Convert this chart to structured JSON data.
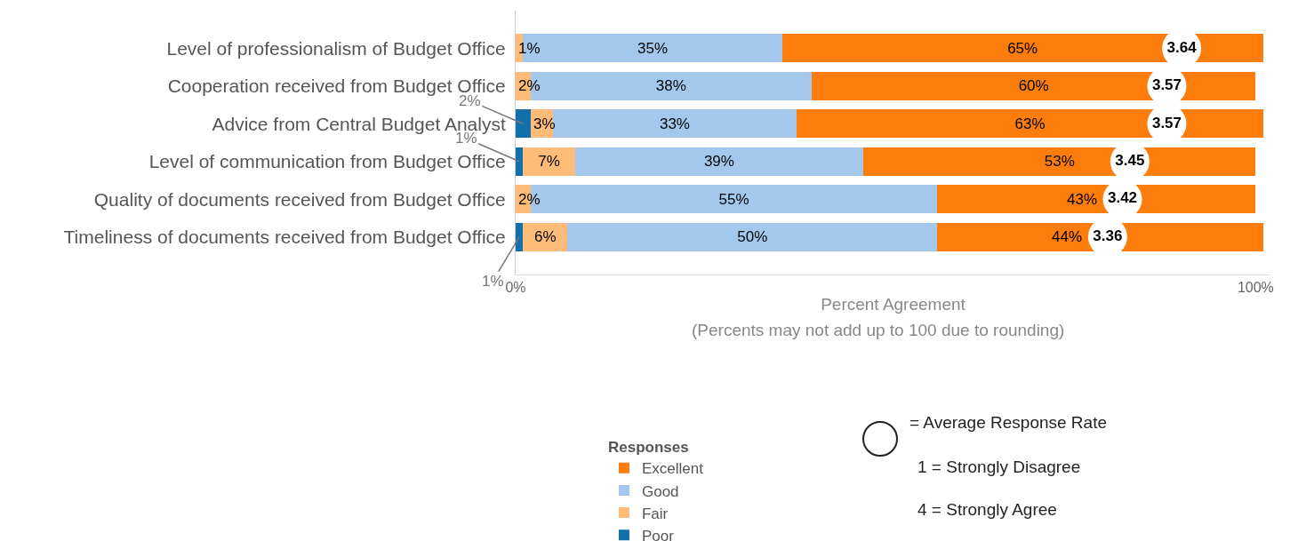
{
  "chart_data": {
    "type": "bar",
    "orientation": "horizontal",
    "stacked": true,
    "categories": [
      "Level of professionalism of Budget Office",
      "Cooperation received from Budget Office",
      "Advice from Central Budget Analyst",
      "Level of communication from Budget Office",
      "Quality of documents received from Budget Office",
      "Timeliness of documents received from Budget Office"
    ],
    "series": [
      {
        "name": "Poor",
        "color": "#1170aa",
        "values": [
          null,
          null,
          2,
          1,
          null,
          1
        ],
        "value_labels": [
          null,
          null,
          "2%",
          "1%",
          null,
          "1%"
        ]
      },
      {
        "name": "Fair",
        "color": "#ffbc79",
        "values": [
          1,
          2,
          3,
          7,
          2,
          6
        ],
        "value_labels": [
          "1%",
          "2%",
          "3%",
          "7%",
          "2%",
          "6%"
        ]
      },
      {
        "name": "Good",
        "color": "#a3c8ec",
        "values": [
          35,
          38,
          33,
          39,
          55,
          50
        ],
        "value_labels": [
          "35%",
          "38%",
          "33%",
          "39%",
          "55%",
          "50%"
        ]
      },
      {
        "name": "Excellent",
        "color": "#fc7d0b",
        "values": [
          65,
          60,
          63,
          53,
          43,
          44
        ],
        "value_labels": [
          "65%",
          "60%",
          "63%",
          "53%",
          "43%",
          "44%"
        ]
      }
    ],
    "xlim": [
      0,
      102
    ],
    "xticks": [
      {
        "value": 0,
        "label": "0%"
      },
      {
        "value": 100,
        "label": "100%"
      }
    ],
    "xlabel": "Percent Agreement",
    "legend_title": "Responses",
    "legend": "bottom",
    "grid": false,
    "annotations": [
      "(Percents may not add up to 100 due to rounding)",
      "= Average Response Rate",
      "1 = Strongly Disagree",
      "4 = Strongly Agree",
      {
        "text": "3.64",
        "x": 90,
        "y": "Level of professionalism of Budget Office"
      },
      {
        "text": "3.57",
        "x": 88,
        "y": "Cooperation received from Budget Office"
      },
      {
        "text": "3.57",
        "x": 88,
        "y": "Advice from Central Budget Analyst"
      },
      {
        "text": "3.45",
        "x": 83,
        "y": "Level of communication from Budget Office"
      },
      {
        "text": "3.42",
        "x": 82,
        "y": "Quality of documents received from Budget Office"
      },
      {
        "text": "3.36",
        "x": 80,
        "y": "Timeliness of documents received from Budget Office"
      }
    ]
  }
}
